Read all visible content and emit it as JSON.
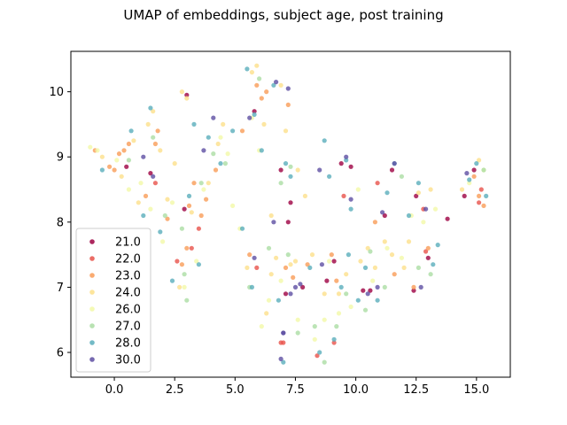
{
  "chart_data": {
    "type": "scatter",
    "title": "UMAP of embeddings, subject age, post training",
    "xlabel": "",
    "ylabel": "",
    "xlim": [
      -1.8,
      16.4
    ],
    "ylim": [
      5.62,
      10.62
    ],
    "xticks": [
      0.0,
      2.5,
      5.0,
      7.5,
      10.0,
      12.5,
      15.0
    ],
    "xtick_labels": [
      "0.0",
      "2.5",
      "5.0",
      "7.5",
      "10.0",
      "12.5",
      "15.0"
    ],
    "yticks": [
      6,
      7,
      8,
      9,
      10
    ],
    "ytick_labels": [
      "6",
      "7",
      "8",
      "9",
      "10"
    ],
    "grid": false,
    "legend_position": "lower-left",
    "series": [
      {
        "name": "21.0",
        "color": "#9e0142",
        "points": [
          [
            0.5,
            8.85
          ],
          [
            1.5,
            8.75
          ],
          [
            2.9,
            8.2
          ],
          [
            3.0,
            9.95
          ],
          [
            5.8,
            9.7
          ],
          [
            6.9,
            8.8
          ],
          [
            7.1,
            6.9
          ],
          [
            7.2,
            8.0
          ],
          [
            7.3,
            8.3
          ],
          [
            7.8,
            7.0
          ],
          [
            8.8,
            7.1
          ],
          [
            9.1,
            7.4
          ],
          [
            9.4,
            8.9
          ],
          [
            9.8,
            8.85
          ],
          [
            10.3,
            6.95
          ],
          [
            10.6,
            6.95
          ],
          [
            11.2,
            8.1
          ],
          [
            11.5,
            8.8
          ],
          [
            12.5,
            8.4
          ],
          [
            13.0,
            7.45
          ],
          [
            13.8,
            8.05
          ],
          [
            14.5,
            8.4
          ],
          [
            14.9,
            8.8
          ],
          [
            12.4,
            6.95
          ]
        ]
      },
      {
        "name": "22.0",
        "color": "#e8534b",
        "points": [
          [
            1.7,
            8.6
          ],
          [
            2.6,
            7.4
          ],
          [
            3.2,
            7.6
          ],
          [
            3.5,
            7.9
          ],
          [
            5.9,
            7.3
          ],
          [
            6.9,
            6.15
          ],
          [
            7.0,
            6.15
          ],
          [
            8.4,
            5.95
          ],
          [
            9.1,
            6.15
          ],
          [
            9.5,
            8.4
          ],
          [
            10.9,
            8.6
          ],
          [
            12.9,
            7.55
          ],
          [
            15.1,
            8.3
          ],
          [
            15.2,
            8.5
          ],
          [
            12.8,
            8.2
          ]
        ]
      },
      {
        "name": "23.0",
        "color": "#f99c58",
        "points": [
          [
            -0.8,
            9.1
          ],
          [
            -0.2,
            8.85
          ],
          [
            0.0,
            8.8
          ],
          [
            0.2,
            9.05
          ],
          [
            0.4,
            9.1
          ],
          [
            0.6,
            9.2
          ],
          [
            1.3,
            8.4
          ],
          [
            1.7,
            9.2
          ],
          [
            1.8,
            9.4
          ],
          [
            2.2,
            8.05
          ],
          [
            2.8,
            7.35
          ],
          [
            3.0,
            7.6
          ],
          [
            3.1,
            8.25
          ],
          [
            3.3,
            8.6
          ],
          [
            3.6,
            8.1
          ],
          [
            3.8,
            8.35
          ],
          [
            4.2,
            8.8
          ],
          [
            5.3,
            9.4
          ],
          [
            5.6,
            7.5
          ],
          [
            5.9,
            10.1
          ],
          [
            6.1,
            9.9
          ],
          [
            6.3,
            10.0
          ],
          [
            7.1,
            7.3
          ],
          [
            7.2,
            9.8
          ],
          [
            7.4,
            7.15
          ],
          [
            8.0,
            7.35
          ],
          [
            9.0,
            7.5
          ],
          [
            9.2,
            7.1
          ],
          [
            10.8,
            8.0
          ],
          [
            11.6,
            7.2
          ],
          [
            12.4,
            7.0
          ],
          [
            13.0,
            7.6
          ],
          [
            14.9,
            8.7
          ],
          [
            15.1,
            8.4
          ],
          [
            15.3,
            8.25
          ]
        ]
      },
      {
        "name": "24.0",
        "color": "#fde08b",
        "points": [
          [
            -0.5,
            9.0
          ],
          [
            0.3,
            8.7
          ],
          [
            0.8,
            9.25
          ],
          [
            1.0,
            8.3
          ],
          [
            1.4,
            9.5
          ],
          [
            1.6,
            9.7
          ],
          [
            1.9,
            9.1
          ],
          [
            2.2,
            8.35
          ],
          [
            2.7,
            7.0
          ],
          [
            2.8,
            10.0
          ],
          [
            3.0,
            9.9
          ],
          [
            3.2,
            8.15
          ],
          [
            3.9,
            8.6
          ],
          [
            4.3,
            9.2
          ],
          [
            4.5,
            9.5
          ],
          [
            5.5,
            7.3
          ],
          [
            5.7,
            10.3
          ],
          [
            5.9,
            10.4
          ],
          [
            6.2,
            9.5
          ],
          [
            6.3,
            6.6
          ],
          [
            6.5,
            7.2
          ],
          [
            6.7,
            7.45
          ],
          [
            6.9,
            10.1
          ],
          [
            7.1,
            9.4
          ],
          [
            7.3,
            7.35
          ],
          [
            7.5,
            7.4
          ],
          [
            7.6,
            8.8
          ],
          [
            8.2,
            7.5
          ],
          [
            8.7,
            6.9
          ],
          [
            9.3,
            6.9
          ],
          [
            9.6,
            7.2
          ],
          [
            10.2,
            7.4
          ],
          [
            10.5,
            7.6
          ],
          [
            10.8,
            7.3
          ],
          [
            11.2,
            7.7
          ],
          [
            11.5,
            7.5
          ],
          [
            12.0,
            7.3
          ],
          [
            12.2,
            7.7
          ],
          [
            12.6,
            8.45
          ],
          [
            13.1,
            8.5
          ],
          [
            14.4,
            8.5
          ],
          [
            15.1,
            8.95
          ],
          [
            2.5,
            8.9
          ],
          [
            6.5,
            8.1
          ],
          [
            7.9,
            8.4
          ]
        ]
      },
      {
        "name": "26.0",
        "color": "#f2f9a8",
        "points": [
          [
            -1.0,
            9.15
          ],
          [
            -0.7,
            9.1
          ],
          [
            0.1,
            8.95
          ],
          [
            0.6,
            8.5
          ],
          [
            1.1,
            8.6
          ],
          [
            1.5,
            8.2
          ],
          [
            2.0,
            7.7
          ],
          [
            2.4,
            8.3
          ],
          [
            2.9,
            7.0
          ],
          [
            3.4,
            7.4
          ],
          [
            3.7,
            8.5
          ],
          [
            4.4,
            9.3
          ],
          [
            4.9,
            8.25
          ],
          [
            5.2,
            7.9
          ],
          [
            5.7,
            9.6
          ],
          [
            6.1,
            6.4
          ],
          [
            6.4,
            6.8
          ],
          [
            6.9,
            7.1
          ],
          [
            7.6,
            6.5
          ],
          [
            8.3,
            6.2
          ],
          [
            8.7,
            6.5
          ],
          [
            9.3,
            6.6
          ],
          [
            9.8,
            6.7
          ],
          [
            10.1,
            8.5
          ],
          [
            10.7,
            7.1
          ],
          [
            11.3,
            7.6
          ],
          [
            11.9,
            7.45
          ],
          [
            12.3,
            8.1
          ],
          [
            12.8,
            8.0
          ],
          [
            13.3,
            8.2
          ],
          [
            14.7,
            8.6
          ],
          [
            15.3,
            8.8
          ],
          [
            4.7,
            9.05
          ],
          [
            6.0,
            9.1
          ],
          [
            8.9,
            7.4
          ]
        ]
      },
      {
        "name": "27.0",
        "color": "#abdda4",
        "points": [
          [
            0.6,
            8.95
          ],
          [
            1.6,
            9.3
          ],
          [
            2.1,
            8.1
          ],
          [
            2.9,
            7.2
          ],
          [
            3.0,
            6.8
          ],
          [
            3.6,
            8.6
          ],
          [
            4.1,
            9.05
          ],
          [
            4.6,
            8.9
          ],
          [
            5.6,
            7.0
          ],
          [
            6.0,
            10.2
          ],
          [
            6.4,
            7.6
          ],
          [
            6.9,
            8.6
          ],
          [
            7.2,
            7.5
          ],
          [
            7.6,
            6.3
          ],
          [
            8.3,
            6.4
          ],
          [
            8.7,
            5.85
          ],
          [
            9.2,
            6.4
          ],
          [
            9.6,
            6.9
          ],
          [
            10.6,
            7.55
          ],
          [
            11.2,
            7.0
          ],
          [
            11.9,
            8.7
          ],
          [
            12.6,
            7.3
          ],
          [
            13.1,
            7.2
          ],
          [
            15.3,
            8.8
          ],
          [
            2.8,
            7.9
          ],
          [
            7.3,
            8.85
          ],
          [
            10.4,
            6.65
          ]
        ]
      },
      {
        "name": "28.0",
        "color": "#5aaebc",
        "points": [
          [
            -0.5,
            8.8
          ],
          [
            0.7,
            9.4
          ],
          [
            1.2,
            8.1
          ],
          [
            1.5,
            9.75
          ],
          [
            1.9,
            7.85
          ],
          [
            2.4,
            7.1
          ],
          [
            3.3,
            9.5
          ],
          [
            3.5,
            7.35
          ],
          [
            3.9,
            9.3
          ],
          [
            4.4,
            8.9
          ],
          [
            4.9,
            9.4
          ],
          [
            5.3,
            7.9
          ],
          [
            5.5,
            10.35
          ],
          [
            5.7,
            7.0
          ],
          [
            5.8,
            9.65
          ],
          [
            6.1,
            9.1
          ],
          [
            6.6,
            10.1
          ],
          [
            7.1,
            8.9
          ],
          [
            7.0,
            5.85
          ],
          [
            7.3,
            8.7
          ],
          [
            8.1,
            7.3
          ],
          [
            8.5,
            6.0
          ],
          [
            8.7,
            9.25
          ],
          [
            8.9,
            8.7
          ],
          [
            9.1,
            6.2
          ],
          [
            9.4,
            7.0
          ],
          [
            9.6,
            8.95
          ],
          [
            9.8,
            8.2
          ],
          [
            10.1,
            6.8
          ],
          [
            10.4,
            7.3
          ],
          [
            10.9,
            6.8
          ],
          [
            11.3,
            8.45
          ],
          [
            11.6,
            8.9
          ],
          [
            12.2,
            8.1
          ],
          [
            12.6,
            8.6
          ],
          [
            13.2,
            7.35
          ],
          [
            13.4,
            7.65
          ],
          [
            14.7,
            8.65
          ],
          [
            15.0,
            8.9
          ],
          [
            15.4,
            8.4
          ],
          [
            3.1,
            8.4
          ],
          [
            6.8,
            6.8
          ],
          [
            9.7,
            7.5
          ]
        ]
      },
      {
        "name": "30.0",
        "color": "#5e4fa2",
        "points": [
          [
            1.2,
            9.0
          ],
          [
            1.6,
            8.7
          ],
          [
            3.7,
            9.1
          ],
          [
            4.1,
            9.6
          ],
          [
            5.6,
            9.6
          ],
          [
            5.8,
            7.45
          ],
          [
            6.6,
            8.0
          ],
          [
            6.7,
            10.15
          ],
          [
            6.9,
            5.9
          ],
          [
            7.2,
            10.05
          ],
          [
            7.0,
            6.3
          ],
          [
            7.3,
            6.9
          ],
          [
            7.5,
            7.0
          ],
          [
            7.7,
            7.05
          ],
          [
            8.6,
            7.35
          ],
          [
            8.5,
            8.8
          ],
          [
            9.6,
            9.0
          ],
          [
            9.8,
            8.35
          ],
          [
            10.5,
            6.9
          ],
          [
            10.9,
            7.0
          ],
          [
            11.1,
            8.15
          ],
          [
            11.6,
            8.9
          ],
          [
            12.7,
            7.0
          ],
          [
            12.9,
            8.2
          ],
          [
            14.6,
            8.75
          ],
          [
            7.0,
            6.3
          ]
        ]
      }
    ]
  }
}
